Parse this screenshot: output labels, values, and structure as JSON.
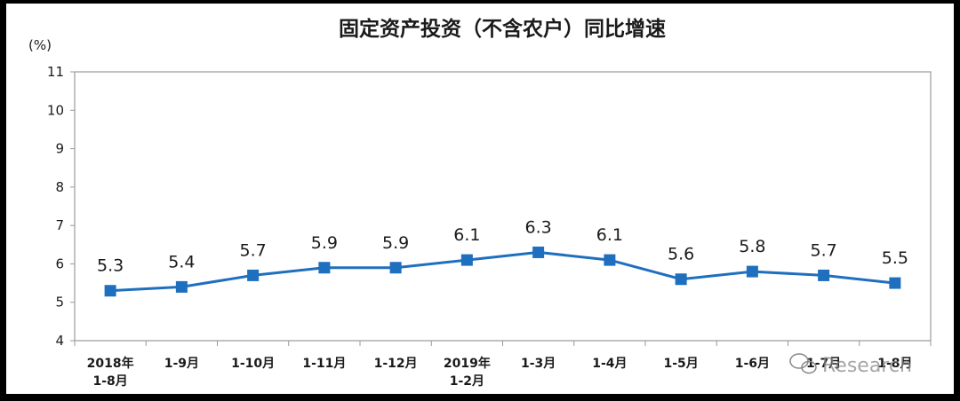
{
  "chart_data": {
    "type": "line",
    "title": "固定资产投资（不含农户）同比增速",
    "ylabel": "(%)",
    "ylim": [
      4,
      11
    ],
    "yticks": [
      "4",
      "5",
      "6",
      "7",
      "8",
      "9",
      "10",
      "11"
    ],
    "grid": false,
    "categories": [
      [
        "2018年",
        "1-8月"
      ],
      [
        "1-9月"
      ],
      [
        "1-10月"
      ],
      [
        "1-11月"
      ],
      [
        "1-12月"
      ],
      [
        "2019年",
        "1-2月"
      ],
      [
        "1-3月"
      ],
      [
        "1-4月"
      ],
      [
        "1-5月"
      ],
      [
        "1-6月"
      ],
      [
        "1-7月"
      ],
      [
        "1-8月"
      ]
    ],
    "values": [
      5.3,
      5.4,
      5.7,
      5.9,
      5.9,
      6.1,
      6.3,
      6.1,
      5.6,
      5.8,
      5.7,
      5.5
    ],
    "data_labels": [
      "5.3",
      "5.4",
      "5.7",
      "5.9",
      "5.9",
      "6.1",
      "6.3",
      "6.1",
      "5.6",
      "5.8",
      "5.7",
      "5.5"
    ],
    "colors": {
      "line": "#1f6fbf",
      "marker": "#1f6fbf",
      "axis": "#999999"
    }
  },
  "watermark": {
    "icon": "wechat-icon",
    "text": "Research"
  }
}
